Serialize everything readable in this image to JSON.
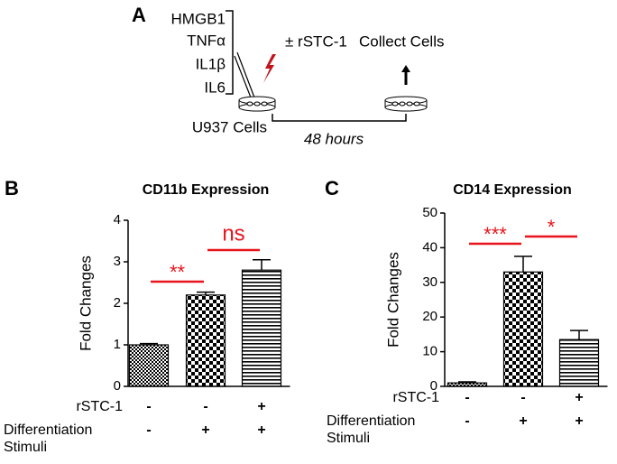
{
  "panel_a": {
    "label": "A",
    "stimuli": [
      "HMGB1",
      "TNFα",
      "IL1β",
      "IL6"
    ],
    "treatment": "± rSTC-1",
    "collect": "Collect Cells",
    "cells": "U937 Cells",
    "duration": "48 hours"
  },
  "chart_data": [
    {
      "type": "bar",
      "panel": "B",
      "title": "CD11b Expression",
      "y_label": "Fold Changes",
      "categories": [
        null,
        null,
        null
      ],
      "values": [
        1.0,
        2.2,
        2.8
      ],
      "errors": [
        0.03,
        0.07,
        0.25
      ],
      "patterns": [
        "dots",
        "checker",
        "stripes"
      ],
      "ylim": [
        0,
        4
      ],
      "yticks": [
        0,
        1,
        2,
        3,
        4
      ],
      "conditions": [
        {
          "name": "rSTC-1",
          "marks": [
            "-",
            "-",
            "+"
          ]
        },
        {
          "name": "Differentiation Stimuli",
          "marks": [
            "-",
            "+",
            "+"
          ]
        }
      ],
      "significance": [
        "**",
        "ns"
      ],
      "significance_color": "#e8141c"
    },
    {
      "type": "bar",
      "panel": "C",
      "title": "CD14 Expression",
      "y_label": "Fold Changes",
      "categories": [
        null,
        null,
        null
      ],
      "values": [
        1.0,
        33,
        13.5
      ],
      "errors": [
        0.3,
        4.5,
        2.6
      ],
      "patterns": [
        "dots",
        "checker",
        "stripes"
      ],
      "ylim": [
        0,
        50
      ],
      "yticks": [
        0,
        10,
        20,
        30,
        40,
        50
      ],
      "conditions": [
        {
          "name": "rSTC-1",
          "marks": [
            "-",
            "-",
            "+"
          ]
        },
        {
          "name": "Differentiation Stimuli",
          "marks": [
            "-",
            "+",
            "+"
          ]
        }
      ],
      "significance": [
        "***",
        "*"
      ],
      "significance_color": "#e8141c"
    }
  ]
}
